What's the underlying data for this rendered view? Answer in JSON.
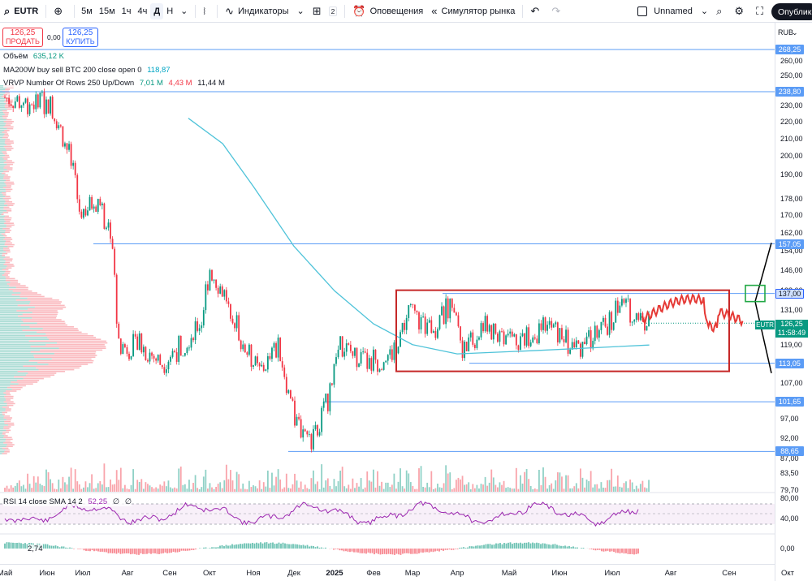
{
  "toolbar": {
    "symbol": "EUTR",
    "add_icon": "plus-circle-icon",
    "intervals": [
      "5м",
      "15м",
      "1ч",
      "4ч",
      "Д",
      "Н"
    ],
    "active_interval": "Д",
    "indicators_label": "Индикаторы",
    "layouts_count": "2",
    "alerts_label": "Оповещения",
    "replay_label": "Симулятор рынка",
    "layout_name": "Unnamed",
    "publish_label": "Опубликовать"
  },
  "trade": {
    "sell_price": "126,25",
    "sell_label": "ПРОДАТЬ",
    "spread": "0,00",
    "buy_price": "126,25",
    "buy_label": "КУПИТЬ"
  },
  "legends": {
    "volume_label": "Объём",
    "volume_value": "635,12 K",
    "ma_label": "MA200W buy sell BTC 200 close open 0",
    "ma_value": "118,87",
    "vrvp_label": "VRVP Number Of Rows 250 Up/Down",
    "vrvp_up": "7,01 M",
    "vrvp_down": "4,43 M",
    "vrvp_total": "11,44 M",
    "rsi_label": "RSI 14 close SMA 14 2",
    "rsi_value": "52,25",
    "rsi_v2": "∅",
    "rsi_v3": "∅",
    "macd_value": "2,74"
  },
  "scale": {
    "currency": "RUB",
    "price_ticks": [
      "260,00",
      "250,00",
      "230,00",
      "220,00",
      "210,00",
      "200,00",
      "190,00",
      "178,00",
      "170,00",
      "162,00",
      "154,00",
      "146,00",
      "138,00",
      "131,00",
      "119,00",
      "107,00",
      "97,00",
      "92,00",
      "87,00",
      "83,50",
      "79,70"
    ],
    "level_badges": [
      "268,25",
      "238,80",
      "157,05",
      "137,00",
      "113,05",
      "101,65",
      "88,65"
    ],
    "current_price": "126,25",
    "countdown": "11:58:49",
    "rsi_ticks": [
      "80,00",
      "40,00"
    ],
    "macd_tick": "0,00"
  },
  "time_axis": [
    "Май",
    "Июн",
    "Июл",
    "Авг",
    "Сен",
    "Окт",
    "Ноя",
    "Дек",
    "2025",
    "Фев",
    "Мар",
    "Апр",
    "Май",
    "Июн",
    "Июл",
    "Авг",
    "Сен",
    "Окт"
  ],
  "colors": {
    "up": "#089981",
    "down": "#f23645",
    "ma": "#4fc3d9",
    "level": "#5b9cf6",
    "box": "#c62828",
    "forecast": "#e53935",
    "rsi": "#9c27b0"
  },
  "chart_data": {
    "type": "candlestick",
    "symbol": "EUTR",
    "currency": "RUB",
    "interval": "D",
    "horizontal_levels": [
      268.25,
      238.8,
      157.05,
      137.0,
      113.05,
      101.65,
      88.65
    ],
    "current_price": 126.25,
    "ma200w_value": 118.87,
    "range_box": {
      "from": "2025-03",
      "to": "2025-10",
      "high": 137.0,
      "low": 113.05
    },
    "path": [
      {
        "t": "2024-05",
        "p": 235
      },
      {
        "t": "2024-05-15",
        "p": 232
      },
      {
        "t": "2024-06-05",
        "p": 230
      },
      {
        "t": "2024-06-20",
        "p": 200
      },
      {
        "t": "2024-06-28",
        "p": 172
      },
      {
        "t": "2024-07-10",
        "p": 175
      },
      {
        "t": "2024-07-20",
        "p": 163
      },
      {
        "t": "2024-07-25",
        "p": 118
      },
      {
        "t": "2024-08-10",
        "p": 119
      },
      {
        "t": "2024-08-25",
        "p": 113
      },
      {
        "t": "2024-09-10",
        "p": 119
      },
      {
        "t": "2024-09-25",
        "p": 127
      },
      {
        "t": "2024-10-01",
        "p": 147
      },
      {
        "t": "2024-10-15",
        "p": 133
      },
      {
        "t": "2024-10-25",
        "p": 118
      },
      {
        "t": "2024-11-05",
        "p": 110
      },
      {
        "t": "2024-11-20",
        "p": 118
      },
      {
        "t": "2024-12-01",
        "p": 97
      },
      {
        "t": "2024-12-15",
        "p": 91
      },
      {
        "t": "2024-12-28",
        "p": 104
      },
      {
        "t": "2025-01-05",
        "p": 119
      },
      {
        "t": "2025-01-25",
        "p": 113
      },
      {
        "t": "2025-02-15",
        "p": 116
      },
      {
        "t": "2025-02-28",
        "p": 130
      },
      {
        "t": "2025-03-15",
        "p": 124
      },
      {
        "t": "2025-03-28",
        "p": 135
      },
      {
        "t": "2025-04-05",
        "p": 116
      },
      {
        "t": "2025-04-15",
        "p": 125
      },
      {
        "t": "2025-05-05",
        "p": 121
      },
      {
        "t": "2025-05-25",
        "p": 125
      },
      {
        "t": "2025-06-10",
        "p": 118
      },
      {
        "t": "2025-06-25",
        "p": 123
      },
      {
        "t": "2025-07-05",
        "p": 133
      },
      {
        "t": "2025-07-20",
        "p": 126.25
      }
    ],
    "ma200w": [
      {
        "t": "2024-09-15",
        "p": 222
      },
      {
        "t": "2024-10-10",
        "p": 207
      },
      {
        "t": "2024-11-01",
        "p": 184
      },
      {
        "t": "2024-12-01",
        "p": 156
      },
      {
        "t": "2025-01-01",
        "p": 138
      },
      {
        "t": "2025-02-01",
        "p": 126
      },
      {
        "t": "2025-03-01",
        "p": 119
      },
      {
        "t": "2025-04-01",
        "p": 116
      },
      {
        "t": "2025-05-15",
        "p": 117
      },
      {
        "t": "2025-07-20",
        "p": 118.87
      }
    ]
  }
}
